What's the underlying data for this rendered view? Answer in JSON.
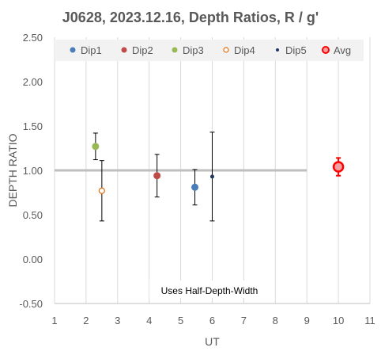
{
  "chart_data": {
    "type": "scatter",
    "title": "J0628, 2023.12.16, Depth Ratios, R / g'",
    "xlabel": "UT",
    "ylabel": "DEPTH RATIO",
    "xlim": [
      1,
      11
    ],
    "ylim": [
      -0.5,
      2.5
    ],
    "x_ticks": [
      "1",
      "2",
      "3",
      "4",
      "5",
      "6",
      "7",
      "8",
      "9",
      "10",
      "11"
    ],
    "y_ticks": [
      "2.50",
      "2.00",
      "1.50",
      "1.00",
      "0.50",
      "0.00",
      "-0.50"
    ],
    "grid": "vertical",
    "legend_position": "top",
    "annotation": "Uses Half-Depth-Width",
    "reference_line": {
      "y": 1.0,
      "x_range": [
        1,
        9
      ],
      "color": "#bfbfbf"
    },
    "series": [
      {
        "name": "Dip1",
        "color": "#4a7ebb",
        "marker": "filled",
        "points": [
          {
            "x": 5.45,
            "y": 0.81,
            "err_low": 0.61,
            "err_high": 1.01
          }
        ]
      },
      {
        "name": "Dip2",
        "color": "#be4b48",
        "marker": "filled",
        "points": [
          {
            "x": 4.25,
            "y": 0.94,
            "err_low": 0.7,
            "err_high": 1.18
          }
        ]
      },
      {
        "name": "Dip3",
        "color": "#98b954",
        "marker": "filled",
        "points": [
          {
            "x": 2.3,
            "y": 1.27,
            "err_low": 1.12,
            "err_high": 1.42
          }
        ]
      },
      {
        "name": "Dip4",
        "color": "#e46c0a",
        "marker": "open",
        "points": [
          {
            "x": 2.5,
            "y": 0.77,
            "err_low": 0.43,
            "err_high": 1.11
          }
        ]
      },
      {
        "name": "Dip5",
        "color": "#1f3864",
        "marker": "small",
        "points": [
          {
            "x": 6.0,
            "y": 0.93,
            "err_low": 0.43,
            "err_high": 1.43
          }
        ]
      },
      {
        "name": "Avg",
        "color": "#ff0000",
        "marker": "large-ring",
        "points": [
          {
            "x": 10.0,
            "y": 1.04,
            "err_low": 0.94,
            "err_high": 1.14
          }
        ]
      }
    ]
  }
}
